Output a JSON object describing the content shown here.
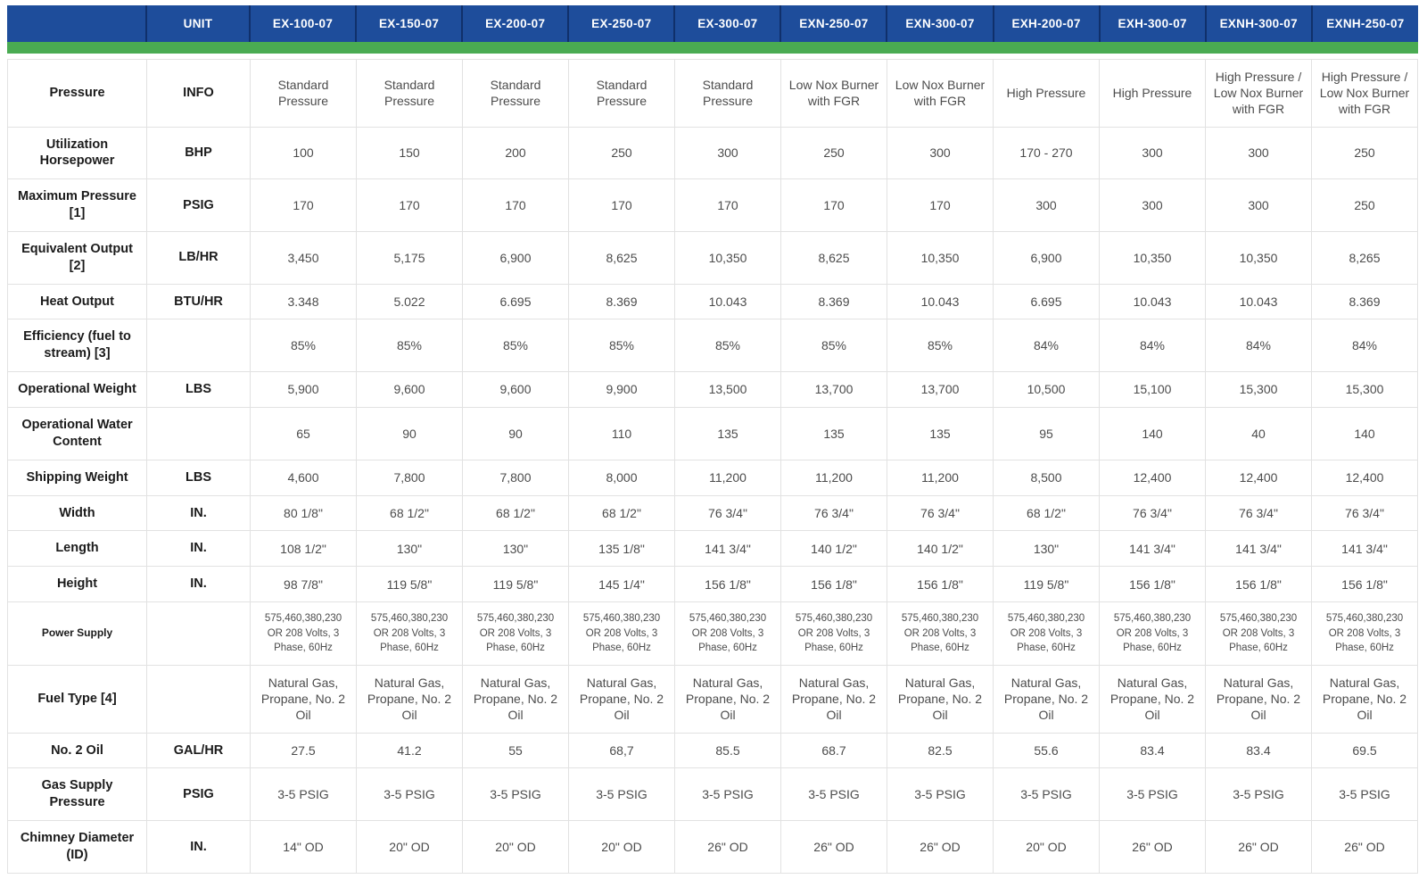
{
  "colors": {
    "header_bg": "#1e4d9b",
    "header_divider": "#10306b",
    "accent_bar_green": "#4aab52",
    "grid_line": "#e2e2e2",
    "header_text": "#ffffff",
    "label_text": "#1b1b1b",
    "value_text": "#4c4c4c"
  },
  "table": {
    "columns": [
      "",
      "UNIT",
      "EX-100-07",
      "EX-150-07",
      "EX-200-07",
      "EX-250-07",
      "EX-300-07",
      "EXN-250-07",
      "EXN-300-07",
      "EXH-200-07",
      "EXH-300-07",
      "EXNH-300-07",
      "EXNH-250-07"
    ],
    "rows": [
      {
        "label": "Pressure",
        "unit": "INFO",
        "values": [
          "Standard Pressure",
          "Standard Pressure",
          "Standard Pressure",
          "Standard Pressure",
          "Standard Pressure",
          "Low Nox Burner with FGR",
          "Low Nox Burner with FGR",
          "High Pressure",
          "High Pressure",
          "High Pressure / Low Nox Burner with FGR",
          "High Pressure / Low Nox Burner with FGR"
        ]
      },
      {
        "label": "Utilization Horsepower",
        "unit": "BHP",
        "values": [
          "100",
          "150",
          "200",
          "250",
          "300",
          "250",
          "300",
          "170 - 270",
          "300",
          "300",
          "250"
        ]
      },
      {
        "label": "Maximum Pressure [1]",
        "unit": "PSIG",
        "values": [
          "170",
          "170",
          "170",
          "170",
          "170",
          "170",
          "170",
          "300",
          "300",
          "300",
          "250"
        ]
      },
      {
        "label": "Equivalent Output [2]",
        "unit": "LB/HR",
        "values": [
          "3,450",
          "5,175",
          "6,900",
          "8,625",
          "10,350",
          "8,625",
          "10,350",
          "6,900",
          "10,350",
          "10,350",
          "8,265"
        ]
      },
      {
        "label": "Heat Output",
        "unit": "BTU/HR",
        "values": [
          "3.348",
          "5.022",
          "6.695",
          "8.369",
          "10.043",
          "8.369",
          "10.043",
          "6.695",
          "10.043",
          "10.043",
          "8.369"
        ]
      },
      {
        "label": "Efficiency (fuel to stream) [3]",
        "unit": "",
        "values": [
          "85%",
          "85%",
          "85%",
          "85%",
          "85%",
          "85%",
          "85%",
          "84%",
          "84%",
          "84%",
          "84%"
        ]
      },
      {
        "label": "Operational Weight",
        "unit": "LBS",
        "values": [
          "5,900",
          "9,600",
          "9,600",
          "9,900",
          "13,500",
          "13,700",
          "13,700",
          "10,500",
          "15,100",
          "15,300",
          "15,300"
        ]
      },
      {
        "label": "Operational Water Content",
        "unit": "",
        "values": [
          "65",
          "90",
          "90",
          "110",
          "135",
          "135",
          "135",
          "95",
          "140",
          "40",
          "140"
        ]
      },
      {
        "label": "Shipping Weight",
        "unit": "LBS",
        "values": [
          "4,600",
          "7,800",
          "7,800",
          "8,000",
          "11,200",
          "11,200",
          "11,200",
          "8,500",
          "12,400",
          "12,400",
          "12,400"
        ]
      },
      {
        "label": "Width",
        "unit": "IN.",
        "values": [
          "80 1/8\"",
          "68 1/2\"",
          "68 1/2\"",
          "68 1/2\"",
          "76 3/4\"",
          "76 3/4\"",
          "76 3/4\"",
          "68 1/2\"",
          "76 3/4\"",
          "76 3/4\"",
          "76 3/4\""
        ]
      },
      {
        "label": "Length",
        "unit": "IN.",
        "values": [
          "108 1/2\"",
          "130\"",
          "130\"",
          "135 1/8\"",
          "141 3/4\"",
          "140 1/2\"",
          "140 1/2\"",
          "130\"",
          "141 3/4\"",
          "141 3/4\"",
          "141 3/4\""
        ]
      },
      {
        "label": "Height",
        "unit": "IN.",
        "values": [
          "98 7/8\"",
          "119 5/8\"",
          "119 5/8\"",
          "145 1/4\"",
          "156 1/8\"",
          "156 1/8\"",
          "156 1/8\"",
          "119 5/8\"",
          "156 1/8\"",
          "156 1/8\"",
          "156 1/8\""
        ]
      },
      {
        "label": "Power Supply",
        "unit": "",
        "small": true,
        "values": [
          "575,460,380,230 OR 208 Volts, 3 Phase, 60Hz",
          "575,460,380,230 OR 208 Volts, 3 Phase, 60Hz",
          "575,460,380,230 OR 208 Volts, 3 Phase, 60Hz",
          "575,460,380,230 OR 208 Volts, 3 Phase, 60Hz",
          "575,460,380,230 OR 208 Volts, 3 Phase, 60Hz",
          "575,460,380,230 OR 208 Volts, 3 Phase, 60Hz",
          "575,460,380,230 OR 208 Volts, 3 Phase, 60Hz",
          "575,460,380,230 OR 208 Volts, 3 Phase, 60Hz",
          "575,460,380,230 OR 208 Volts, 3 Phase, 60Hz",
          "575,460,380,230 OR 208 Volts, 3 Phase, 60Hz",
          "575,460,380,230 OR 208 Volts, 3 Phase, 60Hz"
        ]
      },
      {
        "label": "Fuel Type [4]",
        "unit": "",
        "values": [
          "Natural Gas, Propane, No. 2 Oil",
          "Natural Gas, Propane, No. 2 Oil",
          "Natural Gas, Propane, No. 2 Oil",
          "Natural Gas, Propane, No. 2 Oil",
          "Natural Gas, Propane, No. 2 Oil",
          "Natural Gas, Propane, No. 2 Oil",
          "Natural Gas, Propane, No. 2 Oil",
          "Natural Gas, Propane, No. 2 Oil",
          "Natural Gas, Propane, No. 2 Oil",
          "Natural Gas, Propane, No. 2 Oil",
          "Natural Gas, Propane, No. 2 Oil"
        ]
      },
      {
        "label": "No. 2 Oil",
        "unit": "GAL/HR",
        "values": [
          "27.5",
          "41.2",
          "55",
          "68,7",
          "85.5",
          "68.7",
          "82.5",
          "55.6",
          "83.4",
          "83.4",
          "69.5"
        ]
      },
      {
        "label": "Gas Supply Pressure",
        "unit": "PSIG",
        "values": [
          "3-5 PSIG",
          "3-5 PSIG",
          "3-5 PSIG",
          "3-5 PSIG",
          "3-5 PSIG",
          "3-5 PSIG",
          "3-5 PSIG",
          "3-5 PSIG",
          "3-5 PSIG",
          "3-5 PSIG",
          "3-5 PSIG"
        ]
      },
      {
        "label": "Chimney Diameter (ID)",
        "unit": "IN.",
        "values": [
          "14\" OD",
          "20\" OD",
          "20\" OD",
          "20\" OD",
          "26\" OD",
          "26\" OD",
          "26\" OD",
          "20\" OD",
          "26\" OD",
          "26\" OD",
          "26\" OD"
        ]
      }
    ]
  }
}
